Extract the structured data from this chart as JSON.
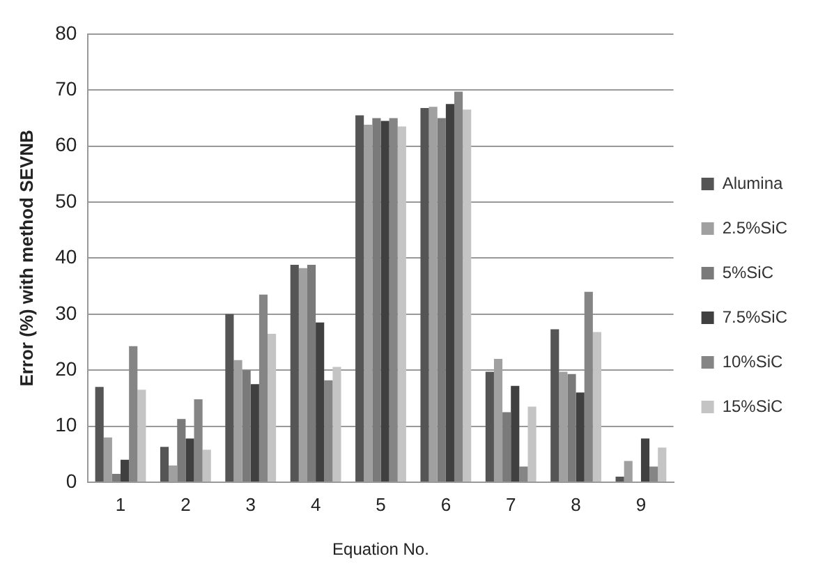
{
  "chart_data": {
    "type": "bar",
    "xlabel": "Equation No.",
    "ylabel": "Error (%) with method SEVNB",
    "categories": [
      "1",
      "2",
      "3",
      "4",
      "5",
      "6",
      "7",
      "8",
      "9"
    ],
    "series": [
      {
        "name": "Alumina",
        "color": "#555555",
        "values": [
          17,
          6.3,
          30,
          38.8,
          65.5,
          66.8,
          19.7,
          27.3,
          1
        ]
      },
      {
        "name": "2.5%SiC",
        "color": "#a0a0a0",
        "values": [
          8,
          3,
          21.8,
          38.2,
          63.8,
          67,
          22,
          19.7,
          3.8
        ]
      },
      {
        "name": "5%SiC",
        "color": "#7a7a7a",
        "values": [
          1.5,
          11.3,
          20,
          38.8,
          65,
          65,
          12.5,
          19.3,
          0
        ]
      },
      {
        "name": "7.5%SiC",
        "color": "#404040",
        "values": [
          4,
          7.8,
          17.5,
          28.5,
          64.5,
          67.5,
          17.2,
          16,
          7.8
        ]
      },
      {
        "name": "10%SiC",
        "color": "#858585",
        "values": [
          24.3,
          14.8,
          33.5,
          18.2,
          65,
          69.7,
          2.8,
          34,
          2.8
        ]
      },
      {
        "name": "15%SiC",
        "color": "#c4c4c4",
        "values": [
          16.5,
          5.8,
          26.5,
          20.6,
          63.5,
          66.5,
          13.5,
          26.8,
          6.2
        ]
      }
    ],
    "ylim": [
      0,
      80
    ],
    "yticks": [
      0,
      10,
      20,
      30,
      40,
      50,
      60,
      70,
      80
    ],
    "grid": "y",
    "legend": "right"
  }
}
